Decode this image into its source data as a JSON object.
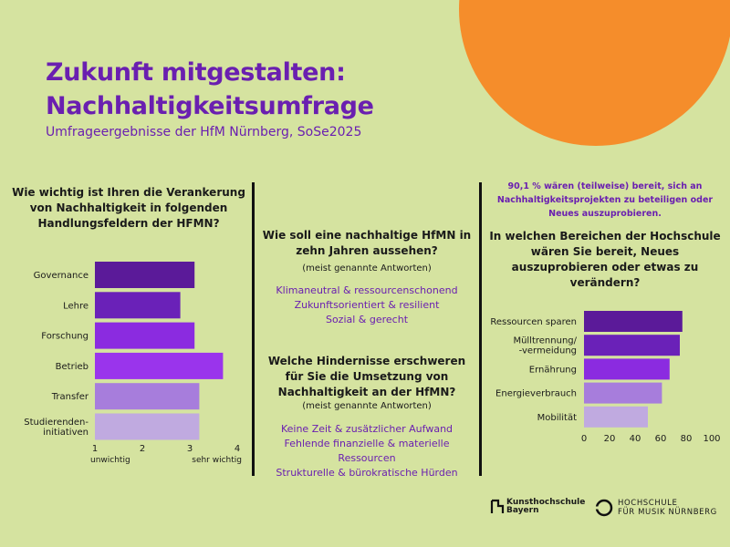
{
  "header": {
    "title_line1": "Zukunft mitgestalten:",
    "title_line2": "Nachhaltigkeitsumfrage",
    "subtitle": "Umfrageergebnisse der HfM Nürnberg, SoSe2025"
  },
  "left": {
    "question": "Wie wichtig ist Ihren die Verankerung von Nachhaltigkeit in folgenden Handlungsfeldern der HFMN?"
  },
  "middle": {
    "q2": {
      "question": "Wie soll eine nachhaltige HfMN in zehn Jahren aussehen?",
      "note": "(meist genannte Antworten)",
      "answers": [
        "Klimaneutral & ressourcenschonend",
        "Zukunftsorientiert & resilient",
        "Sozial & gerecht"
      ]
    },
    "q3": {
      "question": "Welche Hindernisse erschweren für Sie die Umsetzung von Nachhaltigkeit an der HfMN?",
      "note": "(meist genannte Antworten)",
      "answers": [
        "Keine Zeit & zusätzlicher Aufwand",
        "Fehlende finanzielle & materielle Ressourcen",
        "Strukturelle & bürokratische Hürden"
      ]
    }
  },
  "right": {
    "stat": "90,1 % wären (teilweise) bereit, sich an Nachhaltigkeitsprojekten zu beteiligen oder Neues auszuprobieren.",
    "question": "In welchen Bereichen der Hochschule wären Sie bereit, Neues auszuprobieren oder etwas zu verändern?"
  },
  "logos": {
    "kh_line1": "Kunsthochschule",
    "kh_line2": "Bayern",
    "hfm_line1": "HOCHSCHULE",
    "hfm_line2": "FÜR MUSIK NÜRNBERG"
  },
  "chart_data": [
    {
      "type": "bar",
      "orientation": "horizontal",
      "categories": [
        "Governance",
        "Lehre",
        "Forschung",
        "Betrieb",
        "Transfer",
        "Studierenden-initiativen"
      ],
      "category_lines": [
        [
          "Governance"
        ],
        [
          "Lehre"
        ],
        [
          "Forschung"
        ],
        [
          "Betrieb"
        ],
        [
          "Transfer"
        ],
        [
          "Studierenden-",
          "initiativen"
        ]
      ],
      "values": [
        3.1,
        2.8,
        3.1,
        3.7,
        3.2,
        3.2
      ],
      "xlim": [
        1,
        4
      ],
      "xticks": [
        1,
        2,
        3,
        4
      ],
      "xtick_labels": [
        "1",
        "2",
        "3",
        "4"
      ],
      "scale_min_label": "unwichtig",
      "scale_max_label": "sehr wichtig",
      "colors": [
        "#5b1a99",
        "#6a21b8",
        "#8b2be0",
        "#9a34ec",
        "#a77ddc",
        "#c0aae0"
      ]
    },
    {
      "type": "bar",
      "orientation": "horizontal",
      "categories": [
        "Ressourcen sparen",
        "Mülltrennung/-vermeidung",
        "Ernährung",
        "Energieverbrauch",
        "Mobilität"
      ],
      "category_lines": [
        [
          "Ressourcen sparen"
        ],
        [
          "Mülltrennung/",
          "-vermeidung"
        ],
        [
          "Ernährung"
        ],
        [
          "Energieverbrauch"
        ],
        [
          "Mobilität"
        ]
      ],
      "values": [
        77,
        75,
        67,
        61,
        50
      ],
      "xlim": [
        0,
        100
      ],
      "xticks": [
        0,
        20,
        40,
        60,
        80,
        100
      ],
      "xtick_labels": [
        "0",
        "20",
        "40",
        "60",
        "80",
        "100"
      ],
      "colors": [
        "#5b1a99",
        "#6a21b8",
        "#8b2be0",
        "#a77ddc",
        "#c0aae0"
      ]
    }
  ]
}
